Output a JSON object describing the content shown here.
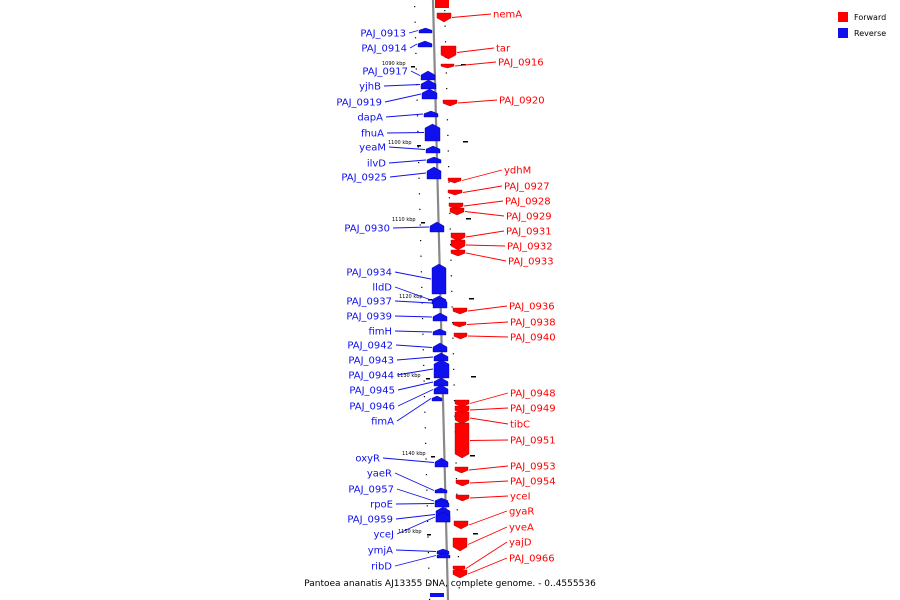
{
  "legend": [
    {
      "label": "Forward",
      "color": "#ff0000"
    },
    {
      "label": "Reverse",
      "color": "#1010ee"
    }
  ],
  "caption": "Pantoea ananatis AJ13355 DNA, complete genome. - 0..4555536",
  "colors": {
    "forward": "#ff0000",
    "reverse": "#1010ee",
    "axis": "#888888"
  },
  "scale_marks": [
    "1090 kbp",
    "1100 kbp",
    "1110 kbp",
    "1120 kbp",
    "1130 kbp",
    "1140 kbp",
    "1150 kbp"
  ],
  "reverse_genes": [
    "PAJ_0913",
    "PAJ_0914",
    "PAJ_0917",
    "yjhB",
    "PAJ_0919",
    "dapA",
    "fhuA",
    "yeaM",
    "ilvD",
    "PAJ_0925",
    "PAJ_0930",
    "PAJ_0934",
    "lldD",
    "PAJ_0937",
    "PAJ_0939",
    "fimH",
    "PAJ_0942",
    "PAJ_0943",
    "PAJ_0944",
    "PAJ_0945",
    "PAJ_0946",
    "fimA",
    "oxyR",
    "yaeR",
    "PAJ_0957",
    "rpoE",
    "PAJ_0959",
    "yceJ",
    "ymjA",
    "ribD"
  ],
  "forward_genes": [
    "nemA",
    "tar",
    "PAJ_0916",
    "PAJ_0920",
    "ydhM",
    "PAJ_0927",
    "PAJ_0928",
    "PAJ_0929",
    "PAJ_0931",
    "PAJ_0932",
    "PAJ_0933",
    "PAJ_0936",
    "PAJ_0938",
    "PAJ_0940",
    "PAJ_0948",
    "PAJ_0949",
    "tibC",
    "PAJ_0951",
    "PAJ_0953",
    "PAJ_0954",
    "yceI",
    "gyaR",
    "yveA",
    "yajD",
    "PAJ_0966"
  ]
}
